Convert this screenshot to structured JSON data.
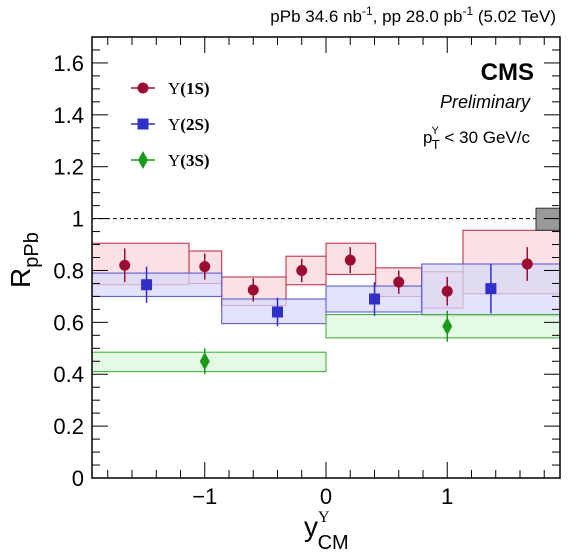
{
  "header": {
    "lumi_text_1": "pPb 34.6 nb",
    "lumi_sup_1": "-1",
    "lumi_text_2": ", pp 28.0 pb",
    "lumi_sup_2": "-1",
    "lumi_text_3": " (5.02 TeV)"
  },
  "labels": {
    "experiment": "CMS",
    "status": "Preliminary",
    "pt_cut_p": "p",
    "pt_cut_sup": "Υ",
    "pt_cut_sub": "T",
    "pt_cut_rest": " < 30 GeV/c"
  },
  "chart_data": {
    "type": "scatter",
    "xlabel": {
      "main": "y",
      "sup": "Υ",
      "sub": "CM"
    },
    "ylabel": {
      "main": "R",
      "sub": "pPb"
    },
    "xlim": [
      -1.93,
      1.93
    ],
    "ylim": [
      0,
      1.7
    ],
    "x_ticks": [
      {
        "value": -1,
        "label": "−1"
      },
      {
        "value": 0,
        "label": "0"
      },
      {
        "value": 1,
        "label": "1"
      }
    ],
    "y_ticks": [
      {
        "value": 0,
        "label": "0"
      },
      {
        "value": 0.2,
        "label": "0.2"
      },
      {
        "value": 0.4,
        "label": "0.4"
      },
      {
        "value": 0.6,
        "label": "0.6"
      },
      {
        "value": 0.8,
        "label": "0.8"
      },
      {
        "value": 1,
        "label": "1"
      },
      {
        "value": 1.2,
        "label": "1.2"
      },
      {
        "value": 1.4,
        "label": "1.4"
      },
      {
        "value": 1.6,
        "label": "1.6"
      }
    ],
    "reference_line": 1,
    "global_uncertainty": {
      "low": 0.955,
      "high": 1.04,
      "color": "#999999"
    },
    "series": [
      {
        "name": "Υ(1S)",
        "legend_main": "Υ",
        "legend_state": "(1S)",
        "marker": "circle",
        "color": "#9b0b33",
        "box_fill": "#f9d6db",
        "box_stroke": "#b8243f",
        "points": [
          {
            "x": -1.66,
            "y": 0.82,
            "err": 0.065,
            "bin": [
              -1.93,
              -1.13
            ],
            "sys": [
              0.745,
              0.905
            ]
          },
          {
            "x": -1.0,
            "y": 0.815,
            "err": 0.05,
            "bin": [
              -1.13,
              -0.86
            ],
            "sys": [
              0.75,
              0.875
            ]
          },
          {
            "x": -0.6,
            "y": 0.725,
            "err": 0.045,
            "bin": [
              -0.86,
              -0.33
            ],
            "sys": [
              0.665,
              0.775
            ]
          },
          {
            "x": -0.2,
            "y": 0.8,
            "err": 0.045,
            "bin": [
              -0.33,
              0.0
            ],
            "sys": [
              0.745,
              0.855
            ]
          },
          {
            "x": 0.2,
            "y": 0.84,
            "err": 0.05,
            "bin": [
              0.0,
              0.41
            ],
            "sys": [
              0.785,
              0.905
            ]
          },
          {
            "x": 0.6,
            "y": 0.755,
            "err": 0.045,
            "bin": [
              0.41,
              0.79
            ],
            "sys": [
              0.7,
              0.81
            ]
          },
          {
            "x": 1.0,
            "y": 0.72,
            "err": 0.055,
            "bin": [
              0.79,
              1.13
            ],
            "sys": [
              0.655,
              0.795
            ]
          },
          {
            "x": 1.66,
            "y": 0.825,
            "err": 0.065,
            "bin": [
              1.13,
              1.93
            ],
            "sys": [
              0.71,
              0.955
            ]
          }
        ]
      },
      {
        "name": "Υ(2S)",
        "legend_main": "Υ",
        "legend_state": "(2S)",
        "marker": "square",
        "color": "#3030c8",
        "box_fill": "#d8d8f8",
        "box_stroke": "#5050d0",
        "points": [
          {
            "x": -1.48,
            "y": 0.745,
            "err": 0.07,
            "bin": [
              -1.93,
              -0.86
            ],
            "sys": [
              0.7,
              0.79
            ]
          },
          {
            "x": -0.4,
            "y": 0.64,
            "err": 0.055,
            "bin": [
              -0.86,
              0.0
            ],
            "sys": [
              0.595,
              0.69
            ]
          },
          {
            "x": 0.4,
            "y": 0.69,
            "err": 0.065,
            "bin": [
              0.0,
              0.79
            ],
            "sys": [
              0.64,
              0.74
            ]
          },
          {
            "x": 1.36,
            "y": 0.73,
            "err": 0.095,
            "bin": [
              0.79,
              1.93
            ],
            "sys": [
              0.625,
              0.825
            ]
          }
        ]
      },
      {
        "name": "Υ(3S)",
        "legend_main": "Υ",
        "legend_state": "(3S)",
        "marker": "diamond",
        "color": "#1a9a1a",
        "box_fill": "#dcf8dc",
        "box_stroke": "#33aa33",
        "points": [
          {
            "x": -1.0,
            "y": 0.45,
            "err": 0.05,
            "bin": [
              -1.93,
              0.0
            ],
            "sys": [
              0.41,
              0.485
            ]
          },
          {
            "x": 1.0,
            "y": 0.585,
            "err": 0.06,
            "bin": [
              0.0,
              1.93
            ],
            "sys": [
              0.54,
              0.63
            ]
          }
        ]
      }
    ],
    "legend_position": "top-left"
  }
}
